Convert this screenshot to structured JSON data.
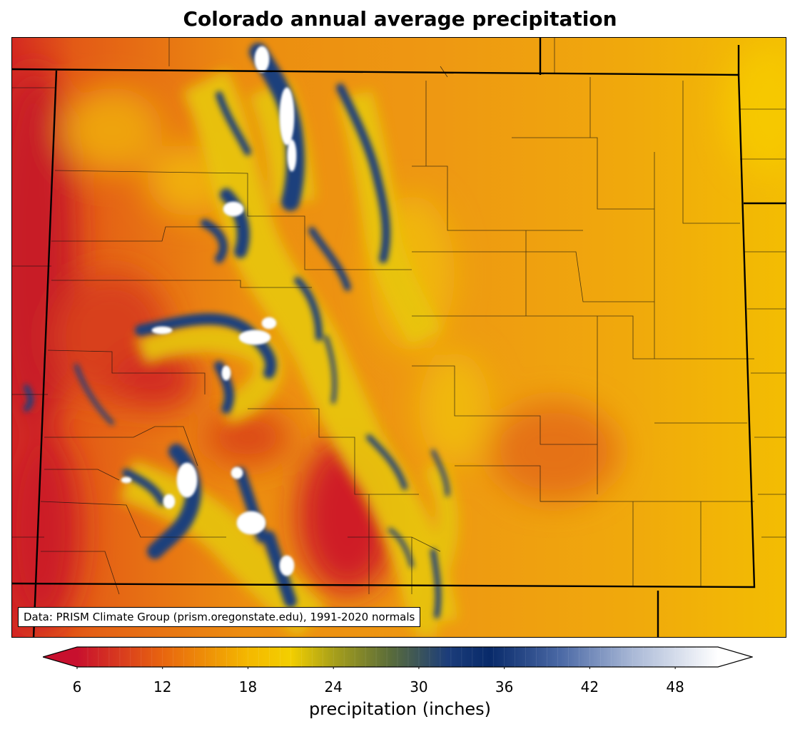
{
  "title": "Colorado annual average precipitation",
  "source_note": "Data: PRISM Climate Group (prism.oregonstate.edu), 1991-2020 normals",
  "colorbar": {
    "label": "precipitation (inches)",
    "min": 6,
    "max": 51,
    "extend": "both",
    "ticks": [
      "6",
      "12",
      "18",
      "24",
      "30",
      "36",
      "42",
      "48"
    ],
    "tick_values": [
      6,
      12,
      18,
      24,
      30,
      36,
      42,
      48
    ],
    "stops": [
      {
        "value": 6,
        "color": "#c8102e"
      },
      {
        "value": 12,
        "color": "#e8650f"
      },
      {
        "value": 18,
        "color": "#f4b800"
      },
      {
        "value": 21,
        "color": "#f3cf00"
      },
      {
        "value": 24,
        "color": "#a8a01a"
      },
      {
        "value": 28,
        "color": "#5a6c3a"
      },
      {
        "value": 32,
        "color": "#1c3d7a"
      },
      {
        "value": 35,
        "color": "#082a6a"
      },
      {
        "value": 40,
        "color": "#4c6aa6"
      },
      {
        "value": 45,
        "color": "#a9b8d6"
      },
      {
        "value": 51,
        "color": "#ffffff"
      }
    ]
  },
  "map": {
    "region": "Colorado",
    "colors": {
      "dry": "#cf1f28",
      "semi_dry": "#e45a14",
      "plains": "#eb8a10",
      "moderate": "#f1b100",
      "wet_transition": "#c9bf2a",
      "mountain_blue": "#1b3b7a",
      "snow_white": "#ffffff"
    }
  }
}
